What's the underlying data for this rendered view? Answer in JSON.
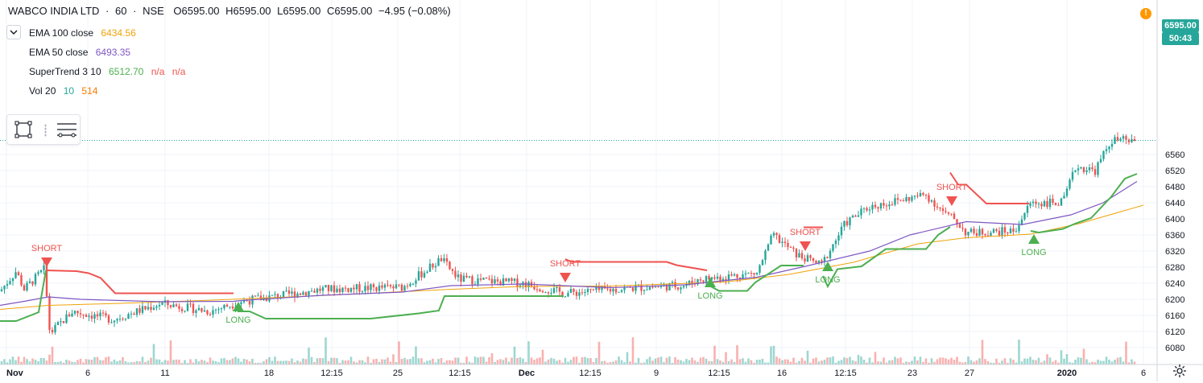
{
  "header": {
    "symbol": "WABCO INDIA LTD",
    "sep1": "·",
    "interval": "60",
    "sep2": "·",
    "exchange": "NSE",
    "open": "O6595.00",
    "high": "H6595.00",
    "low": "L6595.00",
    "close": "C6595.00",
    "change": "−4.95 (−0.08%)"
  },
  "indicators": [
    {
      "label": "EMA 100 close",
      "values": [
        "6434.56"
      ],
      "colors": [
        "#f0a30a"
      ]
    },
    {
      "label": "EMA 50 close",
      "values": [
        "6493.35"
      ],
      "colors": [
        "#7e57c2"
      ]
    },
    {
      "label": "SuperTrend 3 10",
      "values": [
        "6512.70",
        "n/a",
        "n/a"
      ],
      "colors": [
        "#4caf50",
        "#ef5350",
        "#ef5350"
      ]
    },
    {
      "label": "Vol 20",
      "values": [
        "10",
        "514"
      ],
      "colors": [
        "#26a69a",
        "#f57c00"
      ]
    }
  ],
  "price_tags": {
    "last": "6595.00",
    "countdown": "50:43"
  },
  "alert_icon": "!",
  "colors": {
    "up": "#26a69a",
    "down": "#ef5350",
    "ema100": "#f0a30a",
    "ema50": "#7e57c2",
    "st_up": "#4caf50",
    "st_down": "#ef5350",
    "grid": "#f0f3fa",
    "axis_text": "#131722"
  },
  "icons": [
    "chevron-down-icon",
    "rectangle-tool-icon",
    "lines-tool-icon",
    "settings-gear-icon"
  ],
  "chart_data": {
    "type": "candlestick",
    "title": "WABCO INDIA LTD · 60 · NSE",
    "ylim": [
      6060,
      6605
    ],
    "y_ticks": [
      6080,
      6120,
      6160,
      6200,
      6240,
      6280,
      6320,
      6360,
      6400,
      6440,
      6480,
      6520,
      6560
    ],
    "x_ticks": [
      "Nov",
      "6",
      "11",
      "18",
      "12:15",
      "25",
      "12:15",
      "Dec",
      "12:15",
      "9",
      "12:15",
      "16",
      "12:15",
      "23",
      "27",
      "2020",
      "6"
    ],
    "x_ticks_bold": [
      "Nov",
      "Dec",
      "2020"
    ],
    "grid": true,
    "series": [
      {
        "name": "EMA 100 close",
        "type": "line",
        "points": [
          [
            0,
            6175
          ],
          [
            60,
            6185
          ],
          [
            150,
            6190
          ],
          [
            250,
            6197
          ],
          [
            350,
            6205
          ],
          [
            450,
            6214
          ],
          [
            550,
            6224
          ],
          [
            650,
            6232
          ],
          [
            760,
            6233
          ],
          [
            900,
            6243
          ],
          [
            980,
            6262
          ],
          [
            1060,
            6292
          ],
          [
            1140,
            6338
          ],
          [
            1200,
            6353
          ],
          [
            1280,
            6362
          ],
          [
            1340,
            6388
          ],
          [
            1420,
            6434
          ]
        ]
      },
      {
        "name": "EMA 50 close",
        "type": "line",
        "points": [
          [
            0,
            6185
          ],
          [
            30,
            6195
          ],
          [
            60,
            6206
          ],
          [
            100,
            6200
          ],
          [
            200,
            6194
          ],
          [
            290,
            6195
          ],
          [
            300,
            6197
          ],
          [
            400,
            6210
          ],
          [
            500,
            6218
          ],
          [
            560,
            6234
          ],
          [
            650,
            6238
          ],
          [
            760,
            6229
          ],
          [
            850,
            6236
          ],
          [
            940,
            6255
          ],
          [
            1000,
            6282
          ],
          [
            1080,
            6320
          ],
          [
            1130,
            6360
          ],
          [
            1200,
            6393
          ],
          [
            1270,
            6386
          ],
          [
            1330,
            6410
          ],
          [
            1370,
            6440
          ],
          [
            1412,
            6493
          ]
        ]
      },
      {
        "name": "SuperTrend 3 10",
        "type": "step",
        "segments": [
          {
            "trend": "up",
            "points": [
              [
                0,
                6146
              ],
              [
                20,
                6146
              ],
              [
                48,
                6168
              ],
              [
                57,
                6272
              ]
            ]
          },
          {
            "trend": "down",
            "points": [
              [
                57,
                6272
              ],
              [
                95,
                6270
              ],
              [
                110,
                6265
              ],
              [
                125,
                6253
              ],
              [
                143,
                6215
              ],
              [
                290,
                6215
              ]
            ]
          },
          {
            "trend": "up",
            "points": [
              [
                295,
                6170
              ],
              [
                310,
                6170
              ],
              [
                330,
                6152
              ],
              [
                460,
                6152
              ],
              [
                520,
                6165
              ],
              [
                545,
                6172
              ],
              [
                552,
                6208
              ],
              [
                700,
                6208
              ]
            ]
          },
          {
            "trend": "down",
            "points": [
              [
                702,
                6300
              ],
              [
                710,
                6293
              ],
              [
                828,
                6293
              ],
              [
                840,
                6285
              ],
              [
                878,
                6272
              ]
            ]
          },
          {
            "trend": "up",
            "points": [
              [
                878,
                6237
              ],
              [
                893,
                6221
              ],
              [
                928,
                6221
              ],
              [
                938,
                6242
              ],
              [
                970,
                6284
              ],
              [
                998,
                6284
              ]
            ]
          },
          {
            "trend": "down",
            "points": [
              [
                998,
                6379
              ],
              [
                1022,
                6379
              ]
            ]
          },
          {
            "trend": "up",
            "points": [
              [
                1022,
                6258
              ],
              [
                1028,
                6232
              ],
              [
                1040,
                6275
              ],
              [
                1070,
                6282
              ],
              [
                1100,
                6325
              ],
              [
                1150,
                6325
              ],
              [
                1165,
                6360
              ],
              [
                1180,
                6380
              ]
            ]
          },
          {
            "trend": "down",
            "points": [
              [
                1180,
                6515
              ],
              [
                1190,
                6485
              ],
              [
                1200,
                6485
              ],
              [
                1225,
                6438
              ],
              [
                1278,
                6438
              ]
            ]
          },
          {
            "trend": "up",
            "points": [
              [
                1280,
                6370
              ],
              [
                1290,
                6366
              ],
              [
                1320,
                6375
              ],
              [
                1335,
                6388
              ],
              [
                1355,
                6402
              ],
              [
                1380,
                6455
              ],
              [
                1397,
                6500
              ],
              [
                1412,
                6512
              ]
            ]
          }
        ]
      },
      {
        "name": "signals",
        "type": "labels",
        "items": [
          {
            "label": "SHORT",
            "x": 58,
            "y": 6320,
            "trend": "down"
          },
          {
            "label": "LONG",
            "x": 296,
            "y": 6162,
            "trend": "up"
          },
          {
            "label": "SHORT",
            "x": 702,
            "y": 6282,
            "trend": "down"
          },
          {
            "label": "LONG",
            "x": 882,
            "y": 6222,
            "trend": "up"
          },
          {
            "label": "SHORT",
            "x": 1000,
            "y": 6360,
            "trend": "down"
          },
          {
            "label": "LONG",
            "x": 1028,
            "y": 6262,
            "trend": "up"
          },
          {
            "label": "SHORT",
            "x": 1182,
            "y": 6472,
            "trend": "down"
          },
          {
            "label": "LONG",
            "x": 1284,
            "y": 6330,
            "trend": "up"
          }
        ]
      }
    ],
    "candles_path": [
      [
        0,
        6220
      ],
      [
        20,
        6270
      ],
      [
        30,
        6225
      ],
      [
        55,
        6275
      ],
      [
        62,
        6115
      ],
      [
        90,
        6170
      ],
      [
        140,
        6150
      ],
      [
        200,
        6190
      ],
      [
        260,
        6170
      ],
      [
        300,
        6195
      ],
      [
        400,
        6225
      ],
      [
        500,
        6230
      ],
      [
        548,
        6300
      ],
      [
        570,
        6250
      ],
      [
        650,
        6240
      ],
      [
        700,
        6215
      ],
      [
        800,
        6230
      ],
      [
        850,
        6235
      ],
      [
        870,
        6250
      ],
      [
        940,
        6265
      ],
      [
        960,
        6360
      ],
      [
        990,
        6310
      ],
      [
        1020,
        6285
      ],
      [
        1050,
        6390
      ],
      [
        1080,
        6430
      ],
      [
        1150,
        6460
      ],
      [
        1175,
        6410
      ],
      [
        1185,
        6400
      ],
      [
        1200,
        6365
      ],
      [
        1260,
        6370
      ],
      [
        1280,
        6440
      ],
      [
        1320,
        6440
      ],
      [
        1336,
        6530
      ],
      [
        1360,
        6520
      ],
      [
        1380,
        6595
      ],
      [
        1412,
        6595
      ]
    ]
  }
}
